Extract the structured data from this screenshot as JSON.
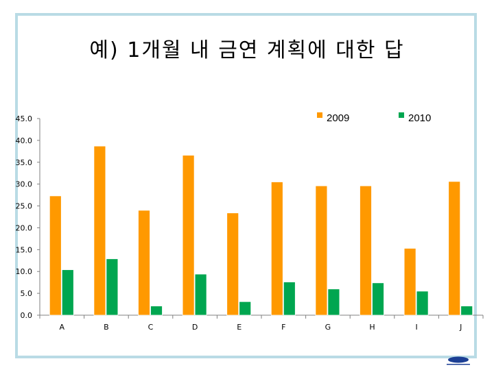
{
  "title": "예) 1개월 내 금연 계획에 대한 답",
  "chart_data": {
    "type": "bar",
    "categories": [
      "A",
      "B",
      "C",
      "D",
      "E",
      "F",
      "G",
      "H",
      "I",
      "J"
    ],
    "series": [
      {
        "name": "2009",
        "color": "#ff9900",
        "values": [
          27.3,
          38.7,
          24.0,
          36.6,
          23.4,
          30.5,
          29.6,
          29.6,
          15.3,
          30.6
        ]
      },
      {
        "name": "2010",
        "color": "#00a650",
        "values": [
          10.4,
          12.9,
          2.1,
          9.4,
          3.1,
          7.6,
          6.0,
          7.4,
          5.5,
          2.1
        ]
      }
    ],
    "ylim": [
      0,
      45
    ],
    "yticks": [
      "0.0",
      "5.0",
      "10.0",
      "15.0",
      "20.0",
      "25.0",
      "30.0",
      "35.0",
      "40.0",
      "45.0"
    ],
    "ystep": 5,
    "legend": "top-right",
    "grid": false
  },
  "logo": {
    "name": "samsung-hospital-logo",
    "color": "#1c3f94"
  }
}
